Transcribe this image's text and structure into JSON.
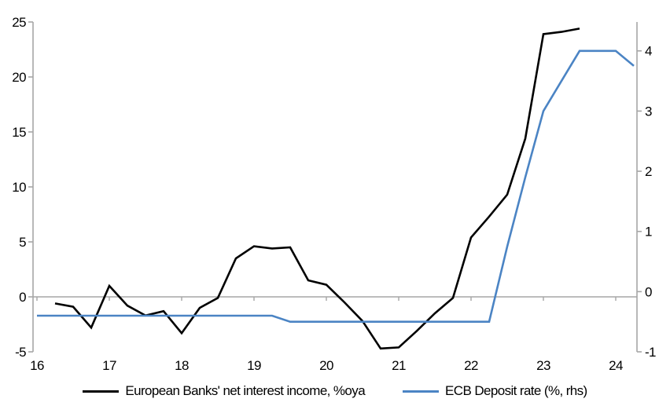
{
  "chart_data": {
    "type": "line",
    "title": "",
    "background": "#ffffff",
    "axis_color": "#a6a6a6",
    "grid": "zero-line-only",
    "legend_position": "bottom",
    "x_range": [
      16,
      24.33
    ],
    "x_ticks": [
      16,
      17,
      18,
      19,
      20,
      21,
      22,
      23,
      24
    ],
    "left_axis": {
      "ticks": [
        -5,
        0,
        5,
        10,
        15,
        20,
        25
      ],
      "range": [
        -5,
        25
      ]
    },
    "right_axis": {
      "ticks": [
        -1,
        0,
        1,
        2,
        3,
        4
      ],
      "range": [
        -1.0,
        4.48
      ]
    },
    "series": [
      {
        "id": "european-banks-nii",
        "name": "European Banks' net interest income, %oya",
        "axis": "left",
        "color": "#000000",
        "points": [
          [
            16.25,
            -0.6
          ],
          [
            16.5,
            -0.9
          ],
          [
            16.75,
            -2.8
          ],
          [
            17.0,
            1.0
          ],
          [
            17.25,
            -0.8
          ],
          [
            17.5,
            -1.7
          ],
          [
            17.75,
            -1.3
          ],
          [
            18.0,
            -3.3
          ],
          [
            18.25,
            -1.0
          ],
          [
            18.5,
            -0.1
          ],
          [
            18.75,
            3.5
          ],
          [
            19.0,
            4.6
          ],
          [
            19.25,
            4.4
          ],
          [
            19.5,
            4.5
          ],
          [
            19.75,
            1.5
          ],
          [
            20.0,
            1.1
          ],
          [
            20.25,
            -0.5
          ],
          [
            20.5,
            -2.2
          ],
          [
            20.75,
            -4.7
          ],
          [
            21.0,
            -4.6
          ],
          [
            21.25,
            -3.1
          ],
          [
            21.5,
            -1.5
          ],
          [
            21.75,
            -0.1
          ],
          [
            22.0,
            5.4
          ],
          [
            22.25,
            7.3
          ],
          [
            22.5,
            9.3
          ],
          [
            22.75,
            14.4
          ],
          [
            23.0,
            23.9
          ],
          [
            23.25,
            24.1
          ],
          [
            23.5,
            24.4
          ]
        ]
      },
      {
        "id": "ecb-deposit-rate",
        "name": "ECB Deposit rate (%, rhs)",
        "axis": "right",
        "color": "#4b84c4",
        "points": [
          [
            16.0,
            -0.4
          ],
          [
            16.25,
            -0.4
          ],
          [
            16.5,
            -0.4
          ],
          [
            16.75,
            -0.4
          ],
          [
            17.0,
            -0.4
          ],
          [
            17.25,
            -0.4
          ],
          [
            17.5,
            -0.4
          ],
          [
            17.75,
            -0.4
          ],
          [
            18.0,
            -0.4
          ],
          [
            18.25,
            -0.4
          ],
          [
            18.5,
            -0.4
          ],
          [
            18.75,
            -0.4
          ],
          [
            19.0,
            -0.4
          ],
          [
            19.25,
            -0.4
          ],
          [
            19.5,
            -0.5
          ],
          [
            19.75,
            -0.5
          ],
          [
            20.0,
            -0.5
          ],
          [
            20.25,
            -0.5
          ],
          [
            20.5,
            -0.5
          ],
          [
            20.75,
            -0.5
          ],
          [
            21.0,
            -0.5
          ],
          [
            21.25,
            -0.5
          ],
          [
            21.5,
            -0.5
          ],
          [
            21.75,
            -0.5
          ],
          [
            22.0,
            -0.5
          ],
          [
            22.25,
            -0.5
          ],
          [
            22.5,
            0.75
          ],
          [
            22.75,
            1.9
          ],
          [
            23.0,
            3.0
          ],
          [
            23.25,
            3.5
          ],
          [
            23.5,
            4.0
          ],
          [
            23.75,
            4.0
          ],
          [
            24.0,
            4.0
          ],
          [
            24.25,
            3.75
          ]
        ]
      }
    ],
    "legend": [
      "European Banks' net interest income, %oya",
      "ECB Deposit rate (%, rhs)"
    ]
  }
}
